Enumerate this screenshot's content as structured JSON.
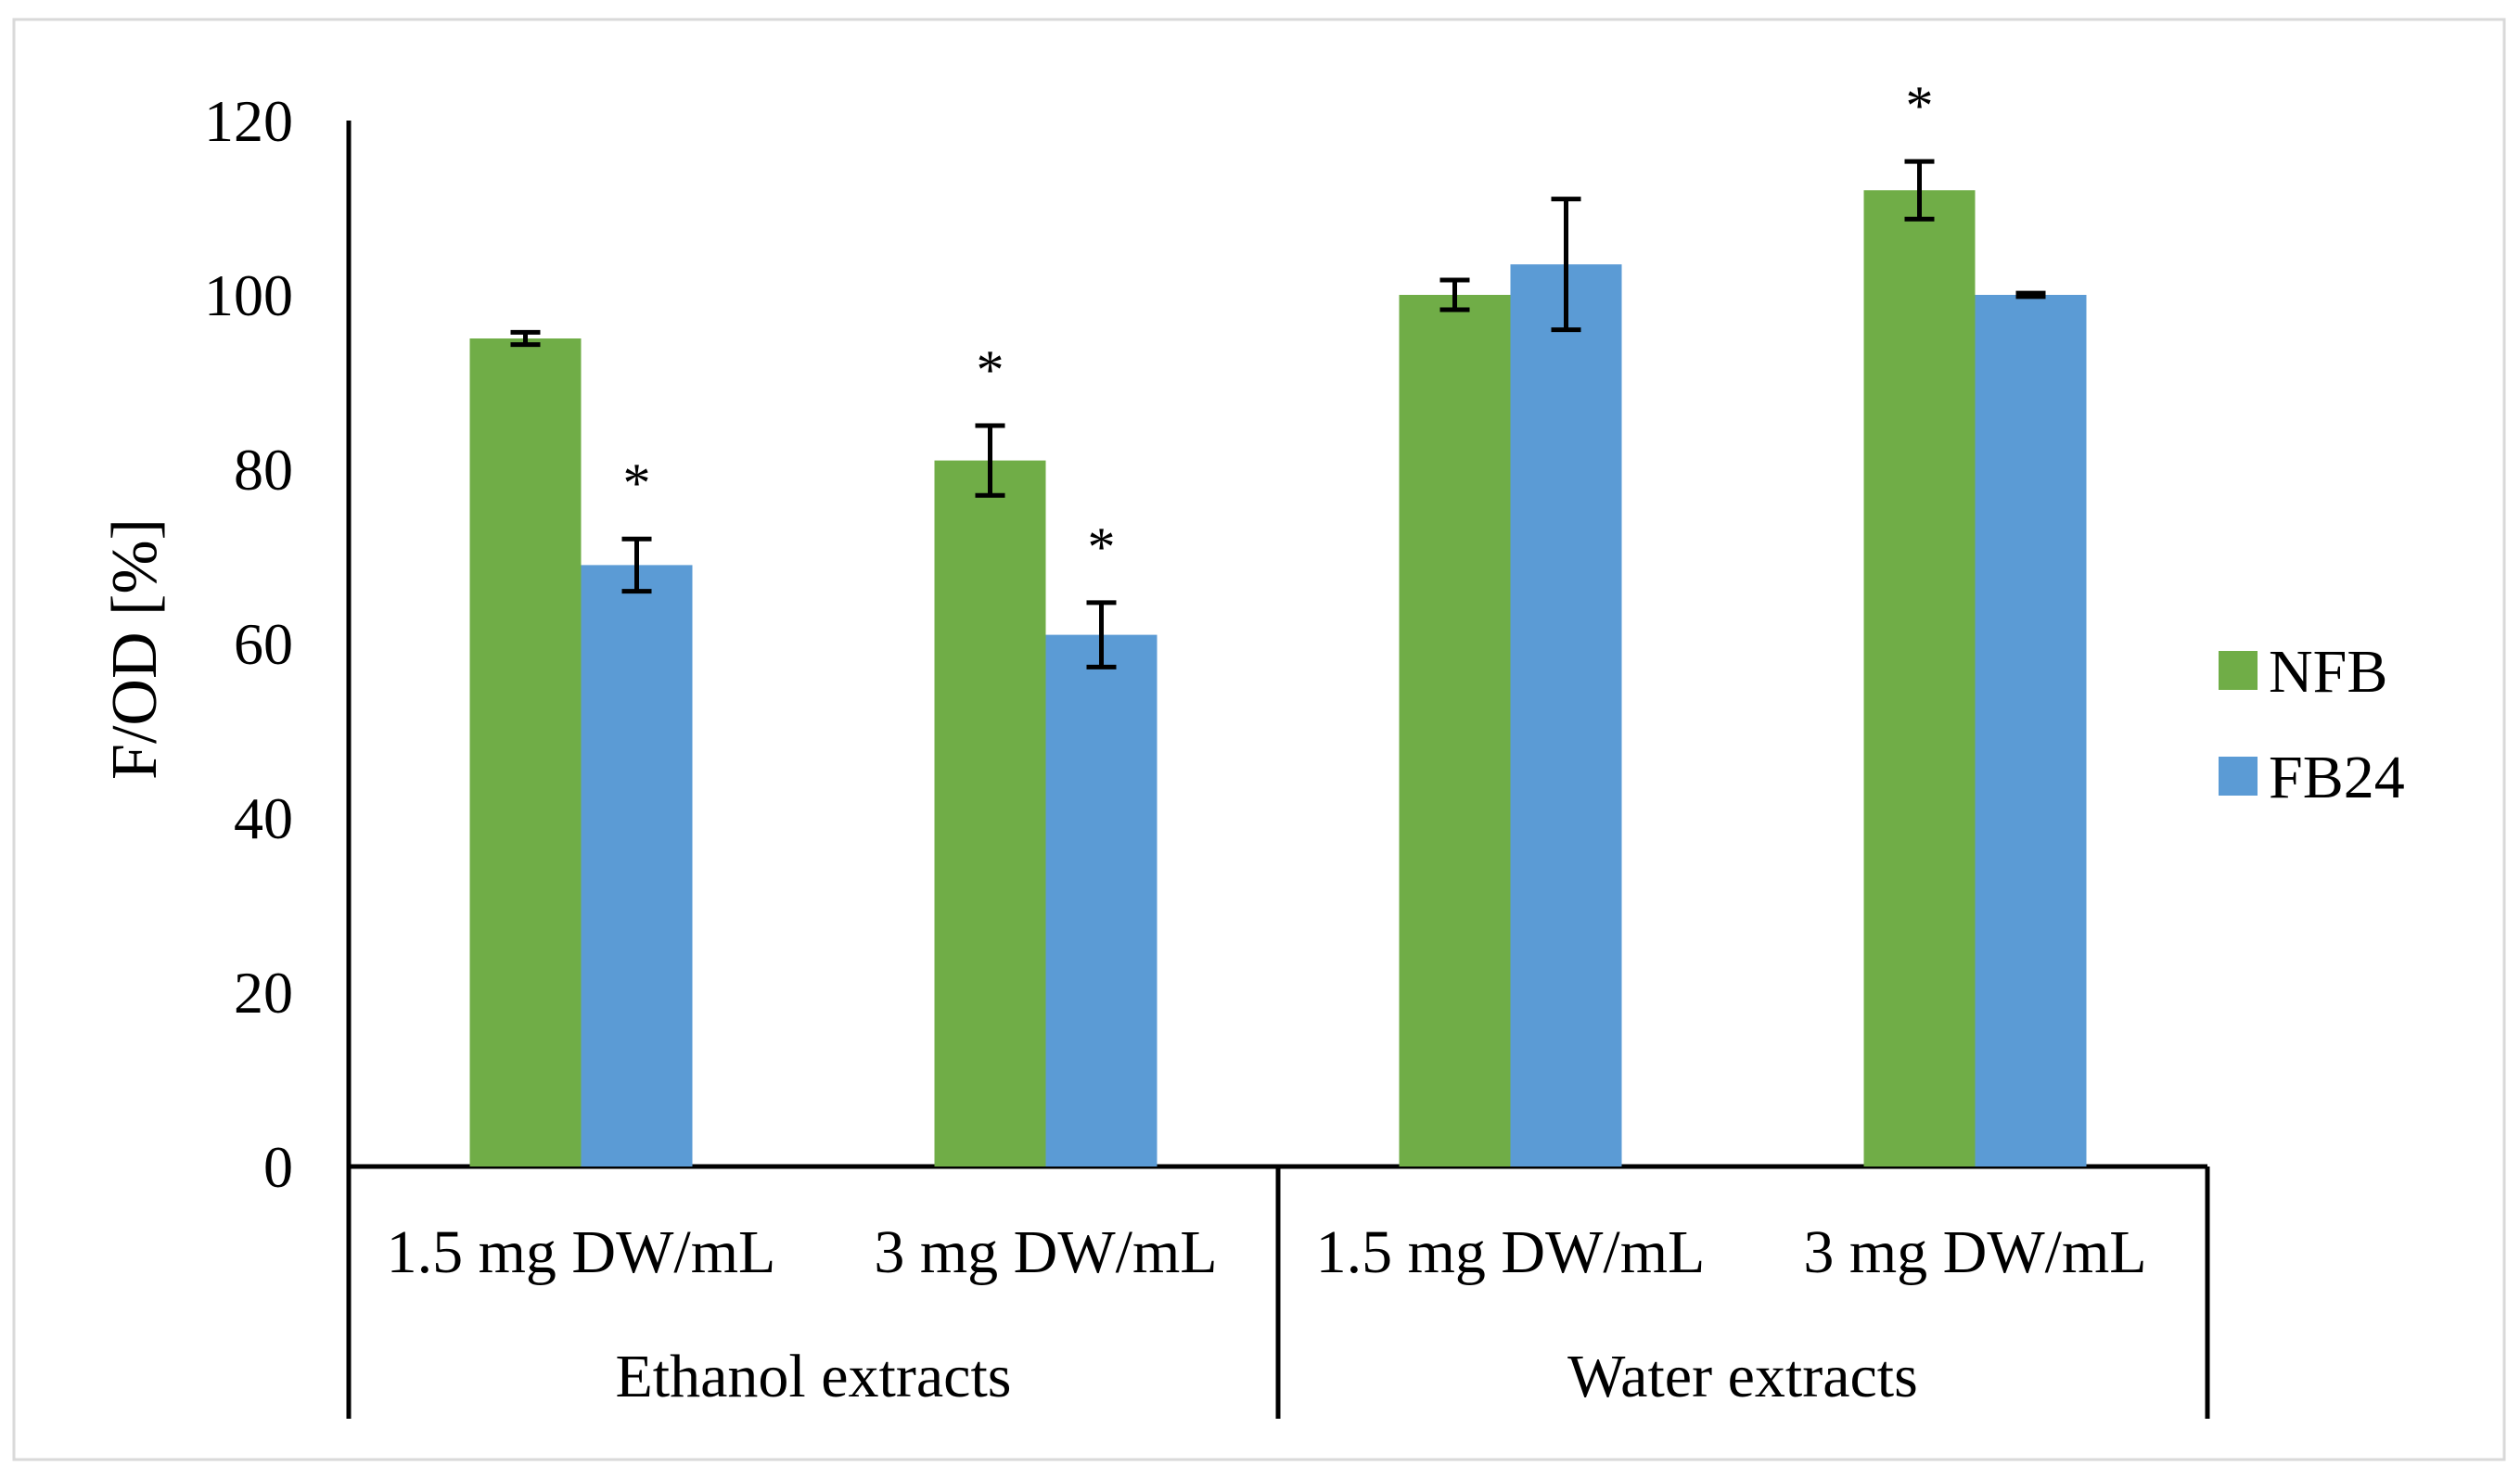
{
  "chart_data": {
    "type": "bar",
    "ylabel": "F/OD [%]",
    "ylim": [
      0,
      120
    ],
    "yticks": [
      0,
      20,
      40,
      60,
      80,
      100,
      120
    ],
    "groups": [
      {
        "label": "Ethanol extracts",
        "categories": [
          "1.5 mg DW/mL",
          "3 mg DW/mL"
        ]
      },
      {
        "label": "Water extracts",
        "categories": [
          "1.5 mg DW/mL",
          "3 mg DW/mL"
        ]
      }
    ],
    "categories": [
      "1.5 mg DW/mL",
      "3 mg DW/mL",
      "1.5 mg DW/mL",
      "3 mg DW/mL"
    ],
    "series": [
      {
        "name": "NFB",
        "color": "#70ad47",
        "values": [
          95,
          81,
          100,
          112
        ],
        "errors": [
          0.7,
          4,
          1.7,
          3.3
        ],
        "significant": [
          false,
          true,
          false,
          true
        ]
      },
      {
        "name": "FB24",
        "color": "#5b9bd5",
        "values": [
          69,
          61,
          103.5,
          100
        ],
        "errors": [
          3,
          3.7,
          7.5,
          0.2
        ],
        "significant": [
          true,
          true,
          false,
          false
        ]
      }
    ],
    "significance_marker": "*",
    "legend": {
      "position": "right",
      "entries": [
        "NFB",
        "FB24"
      ]
    },
    "grid": false
  }
}
